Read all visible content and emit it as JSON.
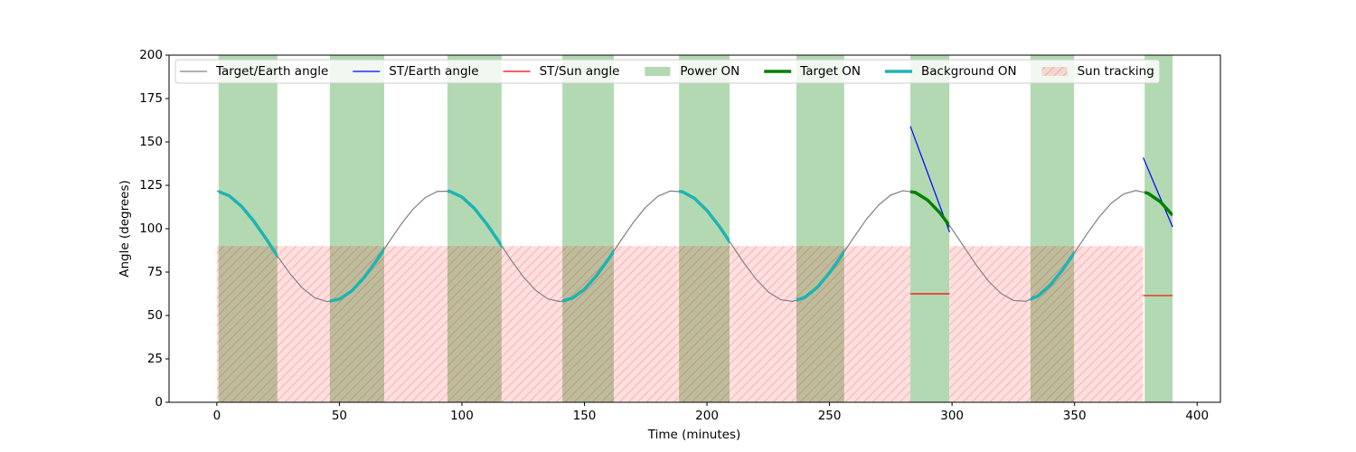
{
  "chart_data": {
    "type": "line",
    "xlabel": "Time (minutes)",
    "ylabel": "Angle (degrees)",
    "xlim": [
      -19.5,
      409.5
    ],
    "ylim": [
      0,
      200
    ],
    "xticks": [
      0,
      50,
      100,
      150,
      200,
      250,
      300,
      350,
      400
    ],
    "yticks": [
      0,
      25,
      50,
      75,
      100,
      125,
      150,
      175,
      200
    ],
    "legend": "upper left",
    "x": [
      0,
      5,
      10,
      15,
      20,
      25,
      30,
      35,
      40,
      45,
      50,
      55,
      60,
      65,
      70,
      75,
      80,
      85,
      90,
      95,
      100,
      105,
      110,
      115,
      120,
      125,
      130,
      135,
      140,
      145,
      150,
      155,
      160,
      165,
      170,
      175,
      180,
      185,
      190,
      195,
      200,
      205,
      210,
      215,
      220,
      225,
      230,
      235,
      240,
      245,
      250,
      255,
      260,
      265,
      270,
      275,
      280,
      285,
      290,
      295,
      300,
      305,
      310,
      315,
      320,
      325,
      330,
      335,
      340,
      345,
      350,
      355,
      360,
      365,
      370,
      375,
      380,
      385,
      390
    ],
    "series": [
      {
        "name": "Target/Earth angle",
        "color": "#808080",
        "values": [
          121.8,
          119.0,
          113.0,
          104.5,
          94.4,
          83.7,
          73.8,
          65.7,
          60.2,
          58.0,
          59.4,
          64.1,
          71.7,
          81.3,
          91.8,
          102.2,
          111.2,
          117.9,
          121.5,
          121.6,
          118.3,
          111.8,
          103.0,
          92.7,
          82.1,
          72.4,
          64.6,
          59.6,
          58.0,
          59.9,
          65.1,
          73.1,
          82.9,
          93.5,
          103.7,
          112.4,
          118.7,
          121.7,
          121.3,
          117.4,
          110.5,
          101.4,
          91.0,
          80.4,
          71.0,
          63.6,
          59.1,
          58.1,
          60.5,
          66.2,
          74.6,
          84.6,
          95.2,
          105.3,
          113.6,
          119.4,
          121.9,
          120.9,
          116.5,
          109.2,
          99.8,
          89.3,
          78.8,
          69.6,
          62.7,
          58.7,
          58.2,
          61.2,
          67.4,
          76.1,
          86.3,
          96.9,
          106.7,
          114.7,
          120.0,
          122.0,
          120.4,
          115.5,
          107.8
        ]
      },
      {
        "name": "ST/Earth angle",
        "color": "#0000ff",
        "x": [
          283,
          299,
          null,
          378,
          390
        ],
        "values": [
          159,
          98,
          null,
          141,
          101
        ]
      },
      {
        "name": "ST/Sun angle",
        "color": "#ff0000",
        "x": [
          283,
          299,
          null,
          378,
          390
        ],
        "values": [
          62.5,
          62.5,
          null,
          61.5,
          61.5
        ]
      }
    ],
    "spans": [
      {
        "name": "Power ON",
        "color": "#008000",
        "ranges": [
          [
            0.7,
            24.7
          ],
          [
            46.1,
            68.3
          ],
          [
            94.1,
            116.2
          ],
          [
            141,
            162
          ],
          [
            188.6,
            209.2
          ],
          [
            236.5,
            256
          ],
          [
            283,
            298.9
          ],
          [
            332,
            349.8
          ],
          [
            378.6,
            390
          ]
        ]
      },
      {
        "name": "Target ON",
        "color": "#008000",
        "highlight": true,
        "ranges": [
          [
            283,
            298.9
          ],
          [
            378.6,
            390
          ]
        ]
      },
      {
        "name": "Background ON",
        "color": "#20b2b2",
        "highlight": true,
        "ranges": [
          [
            0.7,
            24.7
          ],
          [
            46.1,
            68.3
          ],
          [
            94.1,
            116.2
          ],
          [
            141,
            162
          ],
          [
            188.6,
            209.2
          ],
          [
            236.5,
            256
          ],
          [
            332,
            349.8
          ]
        ]
      },
      {
        "name": "Sun tracking",
        "color": "#ff0000",
        "hatch": true,
        "top": 90,
        "ranges": [
          [
            0,
            283
          ],
          [
            299,
            378
          ]
        ]
      }
    ]
  }
}
